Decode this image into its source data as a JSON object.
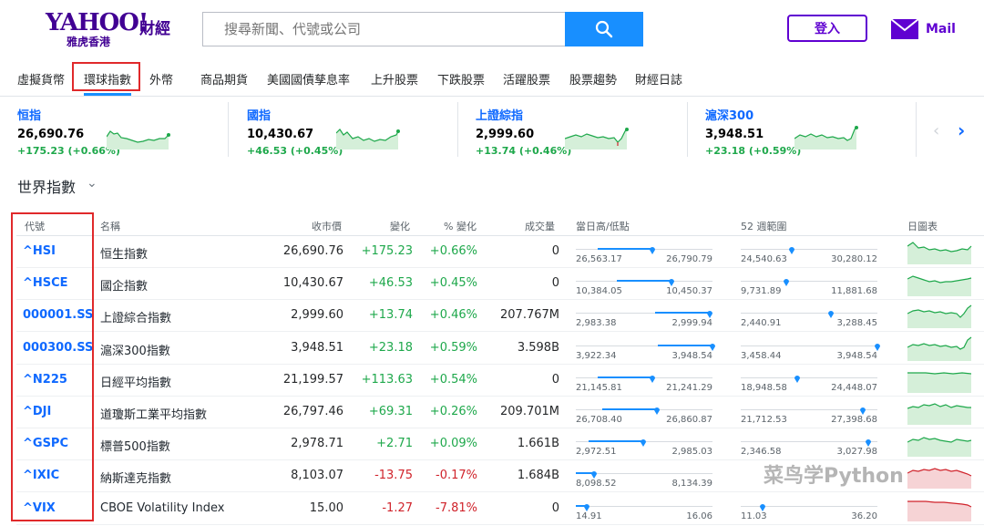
{
  "brand": {
    "yahoo": "YAHOO!",
    "sub": "雅虎香港",
    "cn": "財經"
  },
  "search": {
    "placeholder": "搜尋新聞、代號或公司"
  },
  "header": {
    "login_label": "登入",
    "mail_label": "Mail"
  },
  "nav": {
    "items": [
      "虛擬貨幣",
      "環球指數",
      "外幣",
      "商品期貨",
      "美國國債孳息率",
      "上升股票",
      "下跌股票",
      "活躍股票",
      "股票趨勢",
      "財經日誌"
    ],
    "active": "環球指數"
  },
  "tickers": [
    {
      "name": "恒指",
      "price": "26,690.76",
      "change": "+175.23 (+0.66%)"
    },
    {
      "name": "國指",
      "price": "10,430.67",
      "change": "+46.53 (+0.45%)"
    },
    {
      "name": "上證綜指",
      "price": "2,999.60",
      "change": "+13.74 (+0.46%)"
    },
    {
      "name": "滬深300",
      "price": "3,948.51",
      "change": "+23.18 (+0.59%)"
    }
  ],
  "section": {
    "title": "世界指數"
  },
  "table": {
    "headers": {
      "symbol": "代號",
      "name": "名稱",
      "close": "收市價",
      "change": "變化",
      "pct": "% 變化",
      "volume": "成交量",
      "day_range": "當日高/低點",
      "week52": "52 週範圍",
      "chart": "日圖表"
    },
    "rows": [
      {
        "symbol": "^HSI",
        "name": "恒生指數",
        "close": "26,690.76",
        "change": "+175.23",
        "pct": "+0.66%",
        "volume": "0",
        "dir": "pos",
        "day_lo": "26,563.17",
        "day_hi": "26,790.79",
        "day_pos": 0.56,
        "w_lo": "24,540.63",
        "w_hi": "30,280.12",
        "w_pos": 0.37
      },
      {
        "symbol": "^HSCE",
        "name": "國企指數",
        "close": "10,430.67",
        "change": "+46.53",
        "pct": "+0.45%",
        "volume": "0",
        "dir": "pos",
        "day_lo": "10,384.05",
        "day_hi": "10,450.37",
        "day_pos": 0.7,
        "w_lo": "9,731.89",
        "w_hi": "11,881.68",
        "w_pos": 0.33
      },
      {
        "symbol": "000001.SS",
        "name": "上證綜合指數",
        "close": "2,999.60",
        "change": "+13.74",
        "pct": "+0.46%",
        "volume": "207.767M",
        "dir": "pos",
        "day_lo": "2,983.38",
        "day_hi": "2,999.94",
        "day_pos": 0.98,
        "w_lo": "2,440.91",
        "w_hi": "3,288.45",
        "w_pos": 0.66
      },
      {
        "symbol": "000300.SS",
        "name": "滬深300指數",
        "close": "3,948.51",
        "change": "+23.18",
        "pct": "+0.59%",
        "volume": "3.598B",
        "dir": "pos",
        "day_lo": "3,922.34",
        "day_hi": "3,948.54",
        "day_pos": 1.0,
        "w_lo": "3,458.44",
        "w_hi": "3,948.54",
        "w_pos": 1.0
      },
      {
        "symbol": "^N225",
        "name": "日經平均指數",
        "close": "21,199.57",
        "change": "+113.63",
        "pct": "+0.54%",
        "volume": "0",
        "dir": "pos",
        "day_lo": "21,145.81",
        "day_hi": "21,241.29",
        "day_pos": 0.56,
        "w_lo": "18,948.58",
        "w_hi": "24,448.07",
        "w_pos": 0.41
      },
      {
        "symbol": "^DJI",
        "name": "道瓊斯工業平均指數",
        "close": "26,797.46",
        "change": "+69.31",
        "pct": "+0.26%",
        "volume": "209.701M",
        "dir": "pos",
        "day_lo": "26,708.40",
        "day_hi": "26,860.87",
        "day_pos": 0.59,
        "w_lo": "21,712.53",
        "w_hi": "27,398.68",
        "w_pos": 0.89
      },
      {
        "symbol": "^GSPC",
        "name": "標普500指數",
        "close": "2,978.71",
        "change": "+2.71",
        "pct": "+0.09%",
        "volume": "1.661B",
        "dir": "pos",
        "day_lo": "2,972.51",
        "day_hi": "2,985.03",
        "day_pos": 0.49,
        "w_lo": "2,346.58",
        "w_hi": "3,027.98",
        "w_pos": 0.93
      },
      {
        "symbol": "^IXIC",
        "name": "納斯達克指數",
        "close": "8,103.07",
        "change": "-13.75",
        "pct": "-0.17%",
        "volume": "1.684B",
        "dir": "neg",
        "day_lo": "8,098.52",
        "day_hi": "8,134.39",
        "day_pos": 0.13,
        "w_lo": "",
        "w_hi": "",
        "w_pos": null
      },
      {
        "symbol": "^VIX",
        "name": "CBOE Volatility Index",
        "close": "15.00",
        "change": "-1.27",
        "pct": "-7.81%",
        "volume": "0",
        "dir": "neg",
        "day_lo": "14.91",
        "day_hi": "16.06",
        "day_pos": 0.08,
        "w_lo": "11.03",
        "w_hi": "36.20",
        "w_pos": 0.16
      }
    ]
  },
  "watermark": "菜鸟学Python",
  "colors": {
    "brand": "#410093",
    "accent": "#188fff",
    "link": "#0f69ff",
    "up": "#1ea84b",
    "down": "#d0232b",
    "highlight": "#e0292b"
  }
}
